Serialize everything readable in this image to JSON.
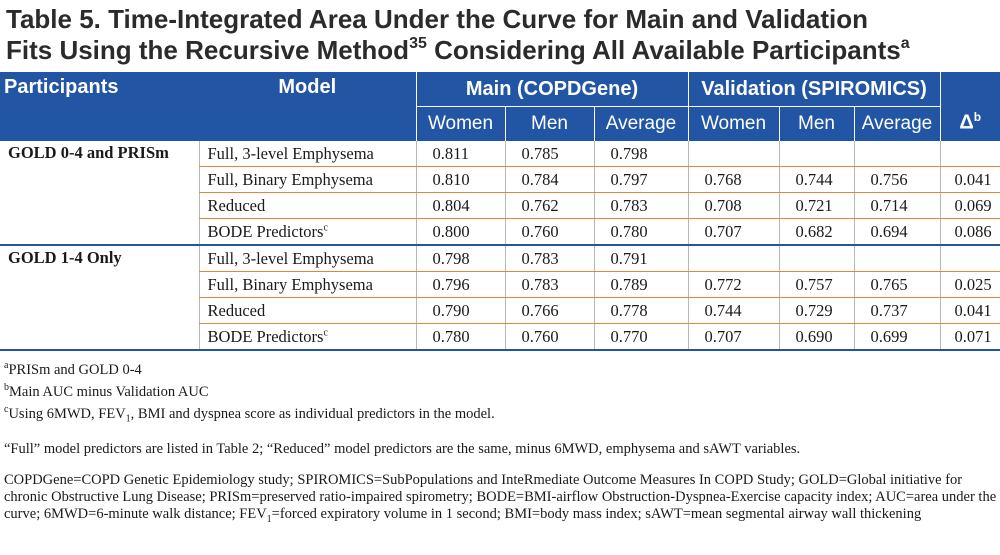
{
  "title": {
    "line1": "Table 5. Time-Integrated Area Under the Curve for Main and Validation",
    "line2_pre": "Fits Using the Recursive Method",
    "line2_ref": "35",
    "line2_post": " Considering All Available Participants",
    "line2_note": "a"
  },
  "header": {
    "participants": "Participants",
    "model": "Model",
    "main": "Main (COPDGene)",
    "validation": "Validation (SPIROMICS)",
    "women": "Women",
    "men": "Men",
    "average": "Average",
    "delta": "Δ",
    "delta_note": "b"
  },
  "groups": [
    {
      "name": "GOLD 0-4 and PRISm",
      "rows": [
        {
          "model": "Full, 3-level Emphysema",
          "note": "",
          "mw": "0.811",
          "mm": "0.785",
          "ma": "0.798",
          "vw": "",
          "vm": "",
          "va": "",
          "d": ""
        },
        {
          "model": "Full, Binary Emphysema",
          "note": "",
          "mw": "0.810",
          "mm": "0.784",
          "ma": "0.797",
          "vw": "0.768",
          "vm": "0.744",
          "va": "0.756",
          "d": "0.041"
        },
        {
          "model": "Reduced",
          "note": "",
          "mw": "0.804",
          "mm": "0.762",
          "ma": "0.783",
          "vw": "0.708",
          "vm": "0.721",
          "va": "0.714",
          "d": "0.069"
        },
        {
          "model": "BODE Predictors",
          "note": "c",
          "mw": "0.800",
          "mm": "0.760",
          "ma": "0.780",
          "vw": "0.707",
          "vm": "0.682",
          "va": "0.694",
          "d": "0.086"
        }
      ]
    },
    {
      "name": "GOLD 1-4 Only",
      "rows": [
        {
          "model": "Full, 3-level Emphysema",
          "note": "",
          "mw": "0.798",
          "mm": "0.783",
          "ma": "0.791",
          "vw": "",
          "vm": "",
          "va": "",
          "d": ""
        },
        {
          "model": "Full, Binary Emphysema",
          "note": "",
          "mw": "0.796",
          "mm": "0.783",
          "ma": "0.789",
          "vw": "0.772",
          "vm": "0.757",
          "va": "0.765",
          "d": "0.025"
        },
        {
          "model": "Reduced",
          "note": "",
          "mw": "0.790",
          "mm": "0.766",
          "ma": "0.778",
          "vw": "0.744",
          "vm": "0.729",
          "va": "0.737",
          "d": "0.041"
        },
        {
          "model": "BODE Predictors",
          "note": "c",
          "mw": "0.780",
          "mm": "0.760",
          "ma": "0.770",
          "vw": "0.707",
          "vm": "0.690",
          "va": "0.699",
          "d": "0.071"
        }
      ]
    }
  ],
  "footnotes": {
    "a_mark": "a",
    "a_text": "PRISm and GOLD 0-4",
    "b_mark": "b",
    "b_text": "Main AUC minus Validation AUC",
    "c_mark": "c",
    "c_pre": "Using 6MWD, FEV",
    "c_sub": "1",
    "c_post": ", BMI and dyspnea score as individual predictors in the model.",
    "full_note": "“Full” model predictors are listed in Table 2; “Reduced” model predictors are the same, minus 6MWD, emphysema and sAWT variables.",
    "abbrev_pre": "COPDGene=COPD Genetic Epidemiology study; SPIROMICS=SubPopulations and InteRmediate Outcome Measures In COPD Study; GOLD=Global initiative for chronic Obstructive Lung Disease; PRISm=preserved ratio-impaired spirometry;  BODE=BMI-airflow Obstruction-Dyspnea-Exercise capacity index; AUC=area under the curve; 6MWD=6-minute walk distance; FEV",
    "abbrev_sub": "1",
    "abbrev_post": "=forced expiratory volume in 1 second; BMI=body mass index; sAWT=mean segmental airway wall thickening"
  }
}
